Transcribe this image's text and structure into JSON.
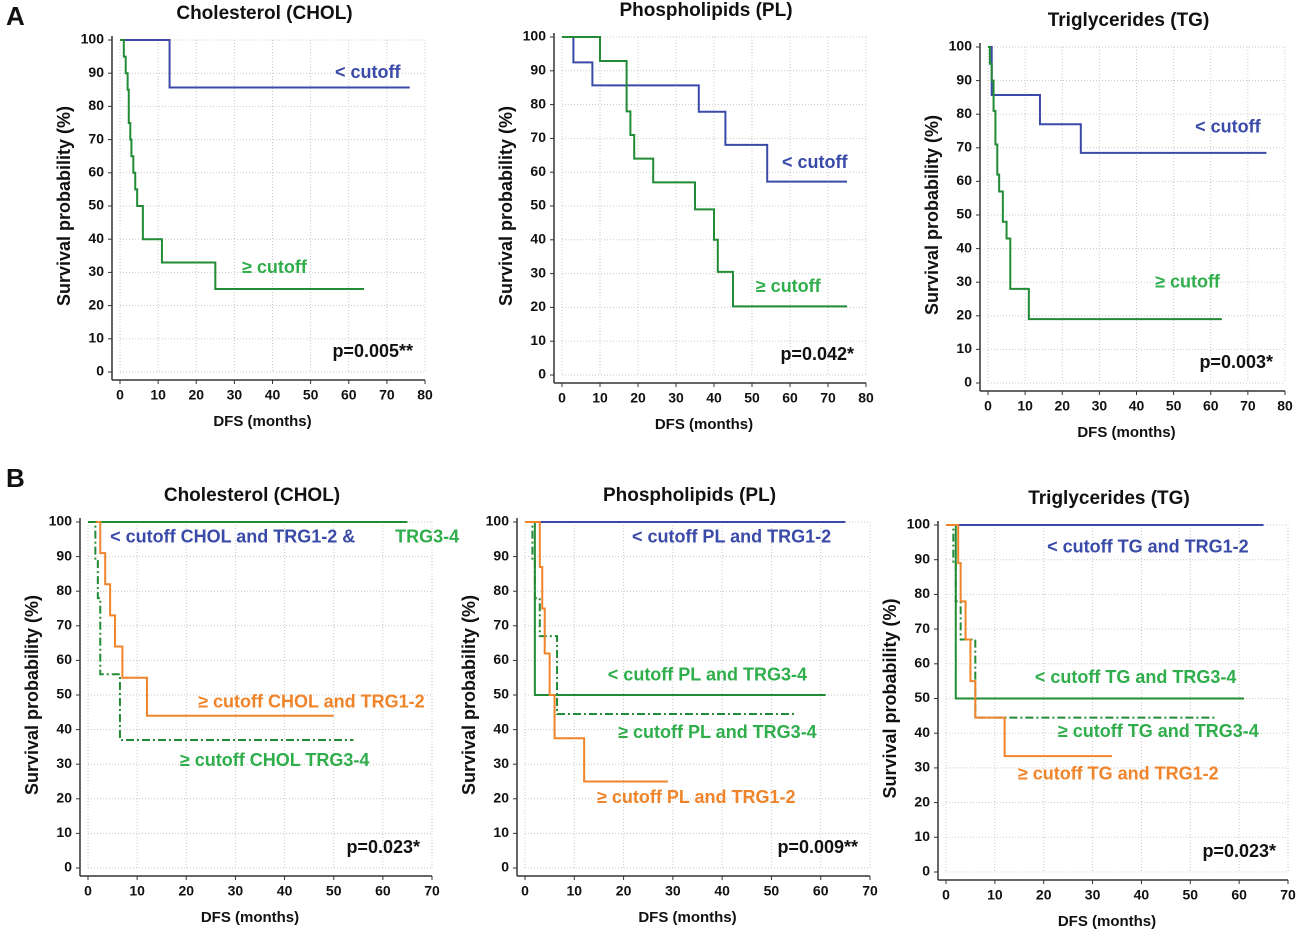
{
  "panel_labels": [
    "A",
    "B"
  ],
  "chart_data": [
    {
      "type": "line",
      "step": true,
      "title": "Cholesterol  (CHOL)",
      "xlabel": "DFS (months)",
      "ylabel": "Survival probability (%)",
      "xlim": [
        0,
        80
      ],
      "ylim": [
        0,
        100
      ],
      "xticks": [
        0,
        10,
        20,
        30,
        40,
        50,
        60,
        70,
        80
      ],
      "yticks": [
        0,
        10,
        20,
        30,
        40,
        50,
        60,
        70,
        80,
        90,
        100
      ],
      "grid": true,
      "annotation": "p=0.005**",
      "series": [
        {
          "name": "< cutoff",
          "color": "#3a4aa8",
          "linestyle": "solid",
          "x": [
            0,
            13,
            76
          ],
          "values": [
            100,
            85.7,
            85.7
          ]
        },
        {
          "name": "≥ cutoff",
          "color": "#228b35",
          "linestyle": "solid",
          "x": [
            0,
            1,
            1.5,
            2,
            2.3,
            2.7,
            3,
            3.5,
            4,
            4.5,
            6,
            11,
            25,
            64
          ],
          "values": [
            100,
            95,
            90,
            85,
            75,
            70,
            65,
            60,
            55,
            50,
            40,
            33,
            25,
            25
          ]
        }
      ]
    },
    {
      "type": "line",
      "step": true,
      "title": "Phospholipids (PL)",
      "xlabel": "DFS (months)",
      "ylabel": "Survival probability (%)",
      "xlim": [
        0,
        80
      ],
      "ylim": [
        0,
        100
      ],
      "xticks": [
        0,
        10,
        20,
        30,
        40,
        50,
        60,
        70,
        80
      ],
      "yticks": [
        0,
        10,
        20,
        30,
        40,
        50,
        60,
        70,
        80,
        90,
        100
      ],
      "grid": true,
      "annotation": "p=0.042*",
      "series": [
        {
          "name": "< cutoff",
          "color": "#3a4aa8",
          "linestyle": "solid",
          "x": [
            0,
            3,
            8,
            36,
            43,
            54,
            75
          ],
          "values": [
            100,
            92.5,
            85.7,
            77.9,
            68.1,
            57.2,
            57.2
          ]
        },
        {
          "name": "≥ cutoff",
          "color": "#228b35",
          "linestyle": "solid",
          "x": [
            0,
            10,
            17,
            18,
            19,
            24,
            35,
            40,
            41,
            45,
            75
          ],
          "values": [
            100,
            92.9,
            78,
            71,
            64,
            57,
            49,
            40,
            30.5,
            20.3,
            20.3
          ]
        }
      ]
    },
    {
      "type": "line",
      "step": true,
      "title": "Triglycerides (TG)",
      "xlabel": "DFS (months)",
      "ylabel": "Survival probability (%)",
      "xlim": [
        0,
        80
      ],
      "ylim": [
        0,
        100
      ],
      "xticks": [
        0,
        10,
        20,
        30,
        40,
        50,
        60,
        70,
        80
      ],
      "yticks": [
        0,
        10,
        20,
        30,
        40,
        50,
        60,
        70,
        80,
        90,
        100
      ],
      "grid": true,
      "annotation": "p=0.003*",
      "series": [
        {
          "name": "< cutoff",
          "color": "#3a4aa8",
          "linestyle": "solid",
          "x": [
            0,
            1,
            14,
            25,
            75
          ],
          "values": [
            100,
            85.7,
            77,
            68.5,
            68.5
          ]
        },
        {
          "name": "≥ cutoff",
          "color": "#228b35",
          "linestyle": "solid",
          "x": [
            0,
            0.5,
            1,
            1.5,
            2,
            2.5,
            3,
            4,
            5,
            6,
            11,
            63
          ],
          "values": [
            100,
            95,
            90,
            81,
            71,
            62,
            57,
            48,
            43,
            28,
            19,
            19
          ]
        }
      ]
    },
    {
      "type": "line",
      "step": true,
      "title": "Cholesterol  (CHOL)",
      "xlabel": "DFS (months)",
      "ylabel": "Survival probability (%)",
      "xlim": [
        0,
        70
      ],
      "ylim": [
        0,
        100
      ],
      "xticks": [
        0,
        10,
        20,
        30,
        40,
        50,
        60,
        70
      ],
      "yticks": [
        0,
        10,
        20,
        30,
        40,
        50,
        60,
        70,
        80,
        90,
        100
      ],
      "grid": true,
      "annotation": "p=0.023*",
      "series": [
        {
          "name": "< cutoff CHOL and TRG1-2 &",
          "color": "#3a4aa8",
          "linestyle": "solid",
          "x": [
            0,
            65
          ],
          "values": [
            100,
            100
          ]
        },
        {
          "name": "TRG3-4",
          "color": "#228b35",
          "linestyle": "solid",
          "x": [
            0,
            65
          ],
          "values": [
            100,
            100
          ]
        },
        {
          "name": "≥ cutoff CHOL and TRG1-2",
          "color": "#f0842a",
          "linestyle": "solid",
          "x": [
            0,
            2.5,
            3.5,
            4.5,
            5.5,
            7,
            12,
            50
          ],
          "values": [
            100,
            91,
            82,
            73,
            64,
            55,
            44,
            44
          ]
        },
        {
          "name": "≥ cutoff CHOL TRG3-4",
          "color": "#228b35",
          "linestyle": "dashdot",
          "x": [
            0,
            1.5,
            2,
            2.5,
            6.5,
            54
          ],
          "values": [
            100,
            89,
            78,
            56,
            37,
            37
          ]
        }
      ]
    },
    {
      "type": "line",
      "step": true,
      "title": "Phospholipids (PL)",
      "xlabel": "DFS (months)",
      "ylabel": "Survival probability (%)",
      "xlim": [
        0,
        70
      ],
      "ylim": [
        0,
        100
      ],
      "xticks": [
        0,
        10,
        20,
        30,
        40,
        50,
        60,
        70
      ],
      "yticks": [
        0,
        10,
        20,
        30,
        40,
        50,
        60,
        70,
        80,
        90,
        100
      ],
      "grid": true,
      "annotation": "p=0.009**",
      "series": [
        {
          "name": "< cutoff PL and TRG1-2",
          "color": "#3a4aa8",
          "linestyle": "solid",
          "x": [
            0,
            65
          ],
          "values": [
            100,
            100
          ]
        },
        {
          "name": "< cutoff PL and TRG3-4",
          "color": "#228b35",
          "linestyle": "solid",
          "x": [
            0,
            2,
            61
          ],
          "values": [
            100,
            50,
            50
          ]
        },
        {
          "name": "≥ cutoff PL and TRG3-4",
          "color": "#228b35",
          "linestyle": "dashdot",
          "x": [
            0,
            1.5,
            2,
            3,
            6.5,
            55
          ],
          "values": [
            100,
            89,
            78,
            67,
            44.5,
            44.5
          ]
        },
        {
          "name": "≥ cutoff PL and TRG1-2",
          "color": "#f0842a",
          "linestyle": "solid",
          "x": [
            0,
            3,
            3.5,
            4,
            5,
            6,
            12,
            29
          ],
          "values": [
            100,
            87,
            75,
            62,
            50,
            37.5,
            25,
            25
          ]
        }
      ]
    },
    {
      "type": "line",
      "step": true,
      "title": "Triglycerides (TG)",
      "xlabel": "DFS (months)",
      "ylabel": "Survival probability (%)",
      "xlim": [
        0,
        70
      ],
      "ylim": [
        0,
        100
      ],
      "xticks": [
        0,
        10,
        20,
        30,
        40,
        50,
        60,
        70
      ],
      "yticks": [
        0,
        10,
        20,
        30,
        40,
        50,
        60,
        70,
        80,
        90,
        100
      ],
      "grid": true,
      "annotation": "p=0.023*",
      "series": [
        {
          "name": "< cutoff TG and TRG1-2",
          "color": "#3a4aa8",
          "linestyle": "solid",
          "x": [
            0,
            65
          ],
          "values": [
            100,
            100
          ]
        },
        {
          "name": "< cutoff TG and TRG3-4",
          "color": "#228b35",
          "linestyle": "solid",
          "x": [
            0,
            2,
            61
          ],
          "values": [
            100,
            50,
            50
          ]
        },
        {
          "name": "≥ cutoff TG and TRG3-4",
          "color": "#228b35",
          "linestyle": "dashdot",
          "x": [
            0,
            1.5,
            2,
            3,
            6,
            55
          ],
          "values": [
            100,
            89,
            78,
            67,
            44.5,
            44.5
          ]
        },
        {
          "name": "≥ cutoff TG and TRG1-2",
          "color": "#f0842a",
          "linestyle": "solid",
          "x": [
            0,
            2.5,
            3,
            4,
            5,
            6,
            12,
            34
          ],
          "values": [
            100,
            89,
            78,
            67,
            55,
            44.5,
            33.4,
            33.4
          ]
        }
      ]
    }
  ]
}
